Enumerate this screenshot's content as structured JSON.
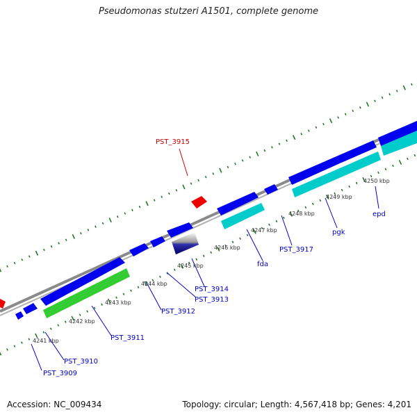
{
  "title": "Pseudomonas stutzeri A1501, complete genome",
  "accession": "Accession: NC_009434",
  "topology": "Topology: circular; Length: 4,567,418 bp; Genes: 4,201",
  "colors": {
    "backbone": "#808080",
    "cds": "#0000ee",
    "rrna": "#00cccc",
    "trna": "#ee0000",
    "other": "#33cc33",
    "tick": "#1e7a1e",
    "label_blue": "#0000cc",
    "label_red": "#cc0000"
  },
  "kbp_ticks": [
    "4241 kbp",
    "4242 kbp",
    "4243 kbp",
    "4244 kbp",
    "4245 kbp",
    "4246 kbp",
    "4247 kbp",
    "4248 kbp",
    "4249 kbp",
    "4250 kbp"
  ],
  "gene_labels": {
    "pst3909": "PST_3909",
    "pst3910": "PST_3910",
    "pst3911": "PST_3911",
    "pst3912": "PST_3912",
    "pst3913": "PST_3913",
    "pst3914": "PST_3914",
    "fda": "fda",
    "pst3917": "PST_3917",
    "pgk": "pgk",
    "epd": "epd",
    "pst3915": "PST_3915"
  }
}
